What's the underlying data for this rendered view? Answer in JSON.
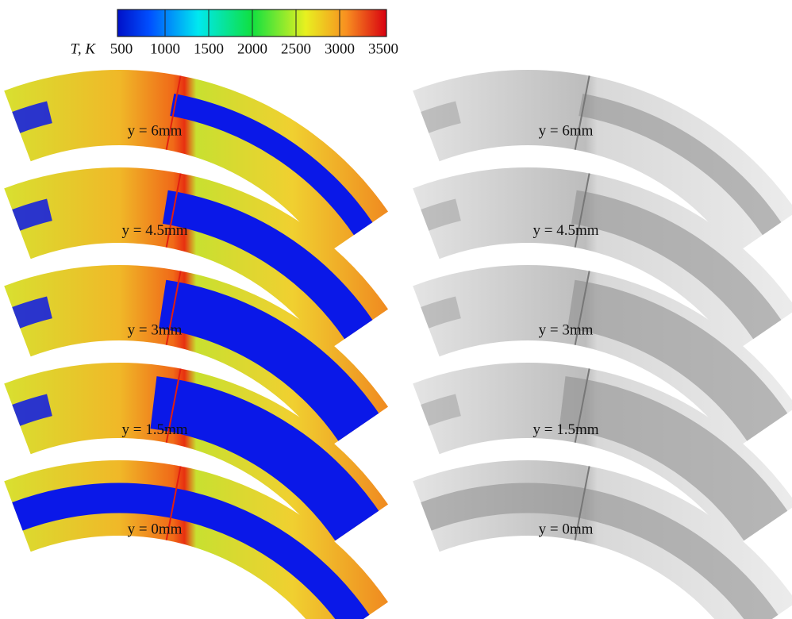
{
  "colorbar": {
    "label": "T, K",
    "lim": [
      500,
      3500
    ],
    "ticks": [
      500,
      1000,
      1500,
      2000,
      2500,
      3000,
      3500
    ]
  },
  "panels": {
    "temperature": [
      "y = 6mm",
      "y = 4.5mm",
      "y = 3mm",
      "y = 1.5mm",
      "y = 0mm"
    ],
    "schlieren": [
      "y = 6mm",
      "y = 4.5mm",
      "y = 3mm",
      "y = 1.5mm",
      "y = 0mm"
    ]
  }
}
